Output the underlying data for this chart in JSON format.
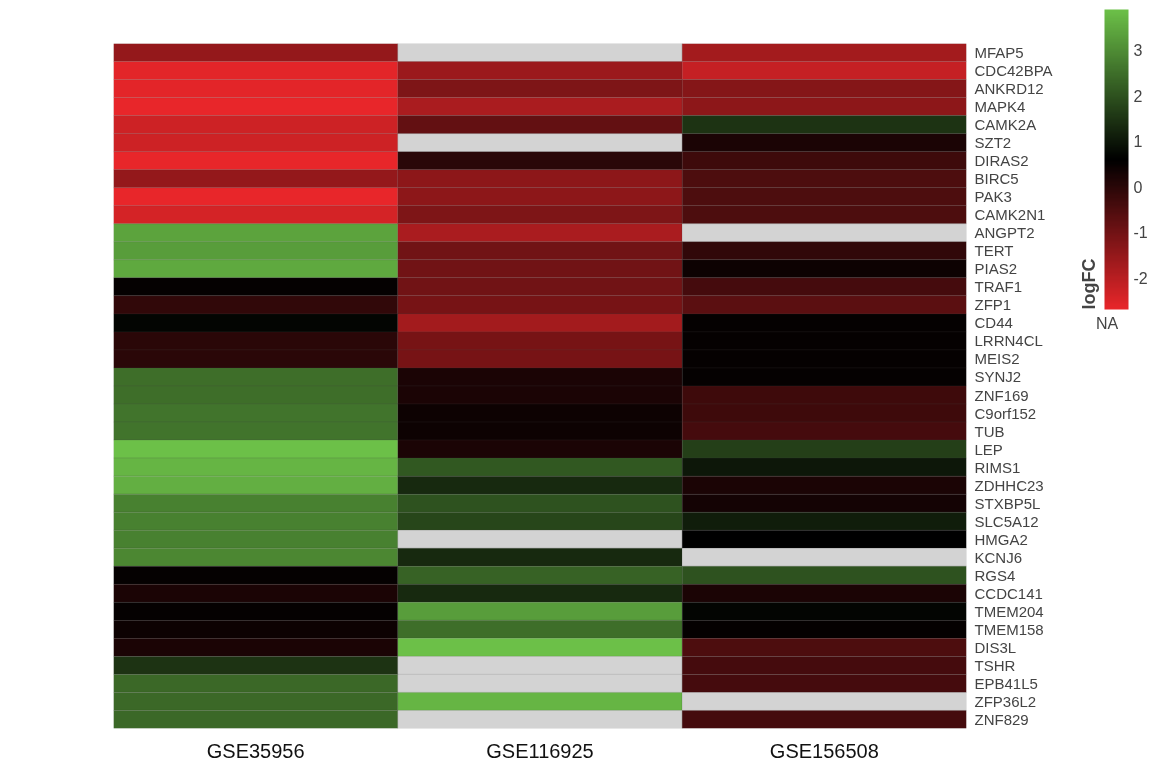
{
  "chart_data": {
    "type": "heatmap",
    "clabel": "logFC",
    "categories": [
      "GSE35956",
      "GSE116925",
      "GSE156508"
    ],
    "y_categories": [
      "MFAP5",
      "CDC42BPA",
      "ANKRD12",
      "MAPK4",
      "CAMK2A",
      "SZT2",
      "DIRAS2",
      "BIRC5",
      "PAK3",
      "CAMK2N1",
      "ANGPT2",
      "TERT",
      "PIAS2",
      "TRAF1",
      "ZFP1",
      "CD44",
      "LRRN4CL",
      "MEIS2",
      "SYNJ2",
      "ZNF169",
      "C9orf152",
      "TUB",
      "LEP",
      "RIMS1",
      "ZDHHC23",
      "STXBP5L",
      "SLC5A12",
      "HMGA2",
      "KCNJ6",
      "RGS4",
      "CCDC141",
      "TMEM204",
      "TMEM158",
      "DIS3L",
      "TSHR",
      "EPB41L5",
      "ZFP36L2",
      "ZNF829"
    ],
    "cells": [
      [
        -1.5,
        null,
        -1.7
      ],
      [
        -2.6,
        -1.6,
        -2.2
      ],
      [
        -2.6,
        -1.2,
        -1.3
      ],
      [
        -2.7,
        -1.8,
        -1.4
      ],
      [
        -2.3,
        -0.8,
        1.5
      ],
      [
        -2.3,
        null,
        0.2
      ],
      [
        -2.7,
        0.0,
        -0.3
      ],
      [
        -1.5,
        -1.4,
        -0.5
      ],
      [
        -2.7,
        -1.4,
        -0.5
      ],
      [
        -2.4,
        -1.2,
        -0.5
      ],
      [
        3.4,
        -1.8,
        null
      ],
      [
        3.3,
        -1.0,
        -0.1
      ],
      [
        3.5,
        -1.0,
        0.4
      ],
      [
        0.5,
        -1.0,
        -0.4
      ],
      [
        -0.1,
        -1.1,
        -0.7
      ],
      [
        0.7,
        -1.7,
        0.5
      ],
      [
        0.0,
        -1.1,
        0.5
      ],
      [
        0.0,
        -1.1,
        0.5
      ],
      [
        2.5,
        0.2,
        0.5
      ],
      [
        2.5,
        0.2,
        -0.3
      ],
      [
        2.6,
        0.4,
        -0.3
      ],
      [
        2.6,
        0.4,
        -0.4
      ],
      [
        3.9,
        0.2,
        1.7
      ],
      [
        3.7,
        2.1,
        1.0
      ],
      [
        3.6,
        1.3,
        0.2
      ],
      [
        2.8,
        2.0,
        0.3
      ],
      [
        2.8,
        1.8,
        1.1
      ],
      [
        2.8,
        null,
        0.6
      ],
      [
        2.9,
        1.3,
        null
      ],
      [
        0.5,
        2.3,
        2.0
      ],
      [
        0.2,
        1.3,
        0.2
      ],
      [
        0.5,
        3.3,
        0.7
      ],
      [
        0.4,
        2.5,
        0.5
      ],
      [
        0.2,
        3.9,
        -0.5
      ],
      [
        1.5,
        null,
        -0.4
      ],
      [
        2.4,
        null,
        -0.4
      ],
      [
        2.4,
        3.7,
        null
      ],
      [
        2.4,
        null,
        -0.4
      ]
    ],
    "clim": [
      -2.7,
      3.9
    ],
    "cticks": [
      -2,
      -1,
      0,
      1,
      2,
      3
    ],
    "annotations": [
      "NA"
    ]
  }
}
